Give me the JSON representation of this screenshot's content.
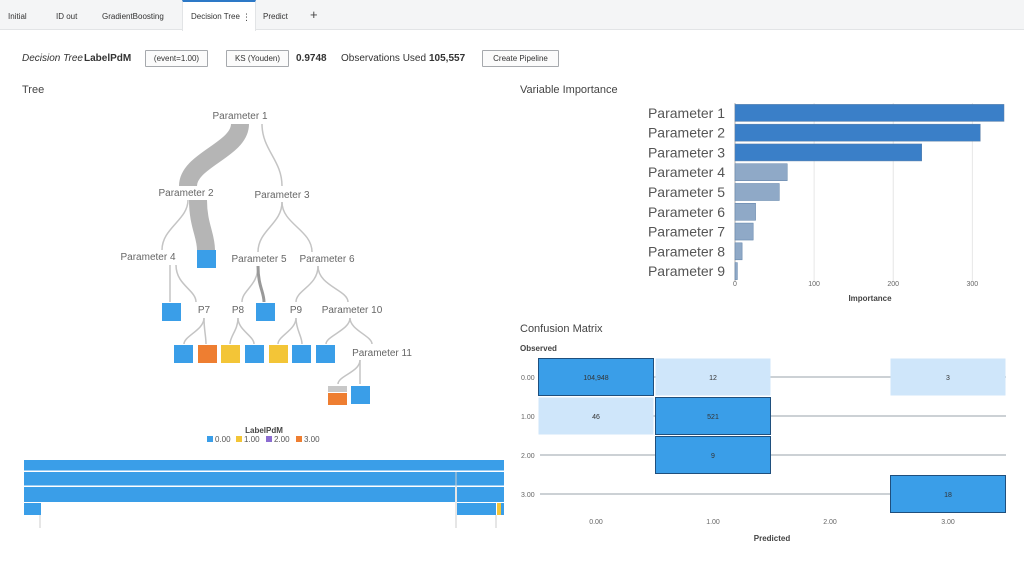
{
  "tabs": [
    {
      "label": "Initial"
    },
    {
      "label": "ID out"
    },
    {
      "label": "GradientBoosting"
    },
    {
      "label": "Decision Tree"
    },
    {
      "label": "Predict"
    }
  ],
  "tab_more_glyph": "⋮",
  "tab_add_glyph": "+",
  "header": {
    "model_type": "Decision Tree",
    "target": "LabelPdM",
    "event_button": "(event=1.00)",
    "ks_button": "KS (Youden)",
    "ks_value": "0.9748",
    "obs_label": "Observations Used",
    "obs_value": "105,557",
    "pipeline_button": "Create Pipeline"
  },
  "tree": {
    "title": "Tree",
    "nodes": {
      "p1": "Parameter 1",
      "p2": "Parameter 2",
      "p3": "Parameter 3",
      "p4": "Parameter 4",
      "p5": "Parameter 5",
      "p6": "Parameter 6",
      "p7": "P7",
      "p8": "P8",
      "p9": "P9",
      "p10": "Parameter 10",
      "p11": "Parameter 11"
    },
    "legend_title": "LabelPdM",
    "legend": [
      {
        "label": "0.00",
        "color": "#3a9ee8"
      },
      {
        "label": "1.00",
        "color": "#f3c537"
      },
      {
        "label": "2.00",
        "color": "#8b6cd1"
      },
      {
        "label": "3.00",
        "color": "#ee7e31"
      }
    ]
  },
  "variable_importance": {
    "title": "Variable Importance",
    "xlabel": "Importance",
    "ticks": [
      "0",
      "100",
      "200",
      "300"
    ],
    "colors": {
      "top": "#3a7fc8",
      "rest": "#8fa9c7"
    }
  },
  "confusion": {
    "title": "Confusion Matrix",
    "observed_label": "Observed",
    "predicted_label": "Predicted",
    "row_labels": [
      "0.00",
      "1.00",
      "2.00",
      "3.00"
    ],
    "col_labels": [
      "0.00",
      "1.00",
      "2.00",
      "3.00"
    ],
    "colors": {
      "high": "#3a9ee8",
      "low": "#cfe6fa",
      "line": "#9aa3ab"
    }
  },
  "chart_data": [
    {
      "type": "bar",
      "orientation": "horizontal",
      "title": "Variable Importance",
      "xlabel": "Importance",
      "categories": [
        "Parameter 1",
        "Parameter 2",
        "Parameter 3",
        "Parameter 4",
        "Parameter 5",
        "Parameter 6",
        "Parameter 7",
        "Parameter 8",
        "Parameter 9"
      ],
      "values": [
        340,
        310,
        236,
        66,
        56,
        26,
        23,
        9,
        3
      ],
      "xlim": [
        0,
        340
      ],
      "grid": true
    },
    {
      "type": "heatmap",
      "title": "Confusion Matrix",
      "xlabel": "Predicted",
      "ylabel": "Observed",
      "rows": [
        "0.00",
        "1.00",
        "2.00",
        "3.00"
      ],
      "cols": [
        "0.00",
        "1.00",
        "2.00",
        "3.00"
      ],
      "cells": [
        {
          "row": "0.00",
          "col": "0.00",
          "value": "104,948",
          "level": "high"
        },
        {
          "row": "0.00",
          "col": "1.00",
          "value": "12",
          "level": "low"
        },
        {
          "row": "0.00",
          "col": "3.00",
          "value": "3",
          "level": "low"
        },
        {
          "row": "1.00",
          "col": "0.00",
          "value": "46",
          "level": "low"
        },
        {
          "row": "1.00",
          "col": "1.00",
          "value": "521",
          "level": "high"
        },
        {
          "row": "2.00",
          "col": "1.00",
          "value": "9",
          "level": "high"
        },
        {
          "row": "3.00",
          "col": "3.00",
          "value": "18",
          "level": "high"
        }
      ]
    }
  ]
}
